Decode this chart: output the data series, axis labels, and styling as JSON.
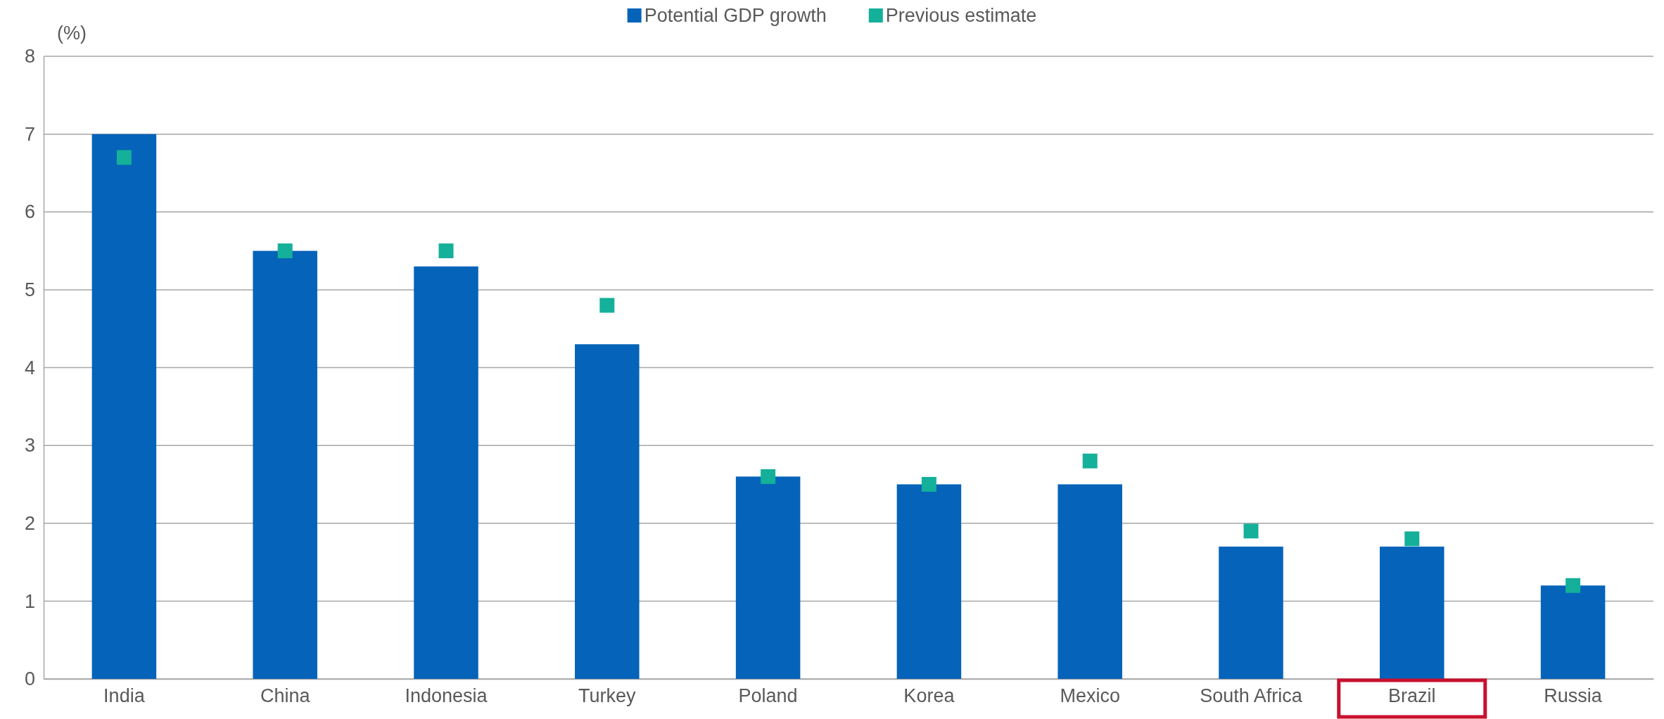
{
  "chart_data": {
    "type": "bar",
    "ylabel": "(%)",
    "categories": [
      "India",
      "China",
      "Indonesia",
      "Turkey",
      "Poland",
      "Korea",
      "Mexico",
      "South Africa",
      "Brazil",
      "Russia"
    ],
    "series": [
      {
        "name": "Potential GDP growth",
        "color": "#0563b9",
        "values": [
          7.0,
          5.5,
          5.3,
          4.3,
          2.6,
          2.5,
          2.5,
          1.7,
          1.7,
          1.2
        ]
      },
      {
        "name": "Previous estimate",
        "type": "scatter",
        "color": "#14b09a",
        "marker": "square",
        "values": [
          6.7,
          5.5,
          5.5,
          4.8,
          2.6,
          2.5,
          2.8,
          1.9,
          1.8,
          1.2
        ]
      }
    ],
    "ylim": [
      0,
      8
    ],
    "yticks": [
      0,
      1,
      2,
      3,
      4,
      5,
      6,
      7,
      8
    ],
    "grid": "y",
    "legend": "top"
  }
}
